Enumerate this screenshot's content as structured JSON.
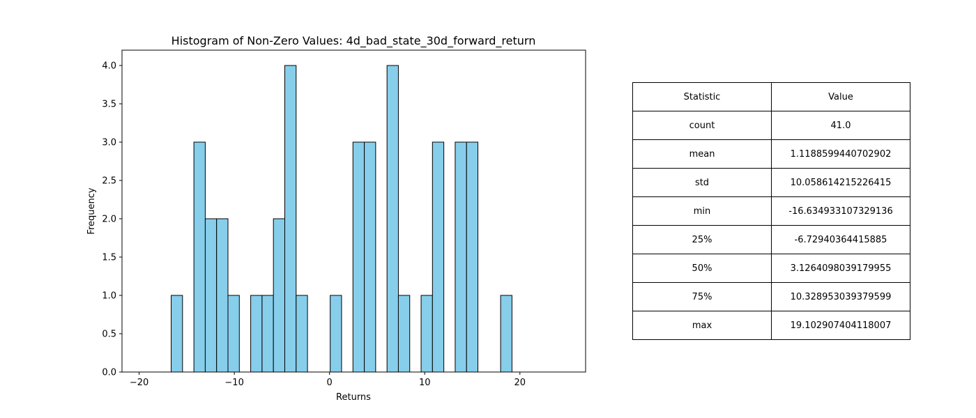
{
  "chart_data": {
    "type": "bar",
    "title": "Histogram of Non-Zero Values: 4d_bad_state_30d_forward_return",
    "xlabel": "Returns",
    "ylabel": "Frequency",
    "xlim": [
      -21.8,
      26.9
    ],
    "ylim": [
      0,
      4.2
    ],
    "xticks": [
      -20,
      -10,
      0,
      10,
      20
    ],
    "xtick_labels": [
      "−20",
      "−10",
      "0",
      "10",
      "20"
    ],
    "yticks": [
      0,
      0.5,
      1,
      1.5,
      2,
      2.5,
      3,
      3.5,
      4
    ],
    "ytick_labels": [
      "0.0",
      "0.5",
      "1.0",
      "1.5",
      "2.0",
      "2.5",
      "3.0",
      "3.5",
      "4.0"
    ],
    "bar_color": "#87ceeb",
    "edge_color": "#000000",
    "bin_start": -16.635,
    "bin_width": 1.1934,
    "values": [
      1,
      0,
      3,
      2,
      2,
      1,
      0,
      1,
      1,
      2,
      4,
      1,
      0,
      0,
      1,
      0,
      3,
      3,
      0,
      4,
      1,
      0,
      1,
      3,
      0,
      3,
      3,
      0,
      0,
      1
    ],
    "grid": false
  },
  "table": {
    "headers": [
      "Statistic",
      "Value"
    ],
    "rows": [
      [
        "count",
        "41.0"
      ],
      [
        "mean",
        "1.1188599440702902"
      ],
      [
        "std",
        "10.058614215226415"
      ],
      [
        "min",
        "-16.634933107329136"
      ],
      [
        "25%",
        "-6.72940364415885"
      ],
      [
        "50%",
        "3.1264098039179955"
      ],
      [
        "75%",
        "10.328953039379599"
      ],
      [
        "max",
        "19.102907404118007"
      ]
    ]
  }
}
